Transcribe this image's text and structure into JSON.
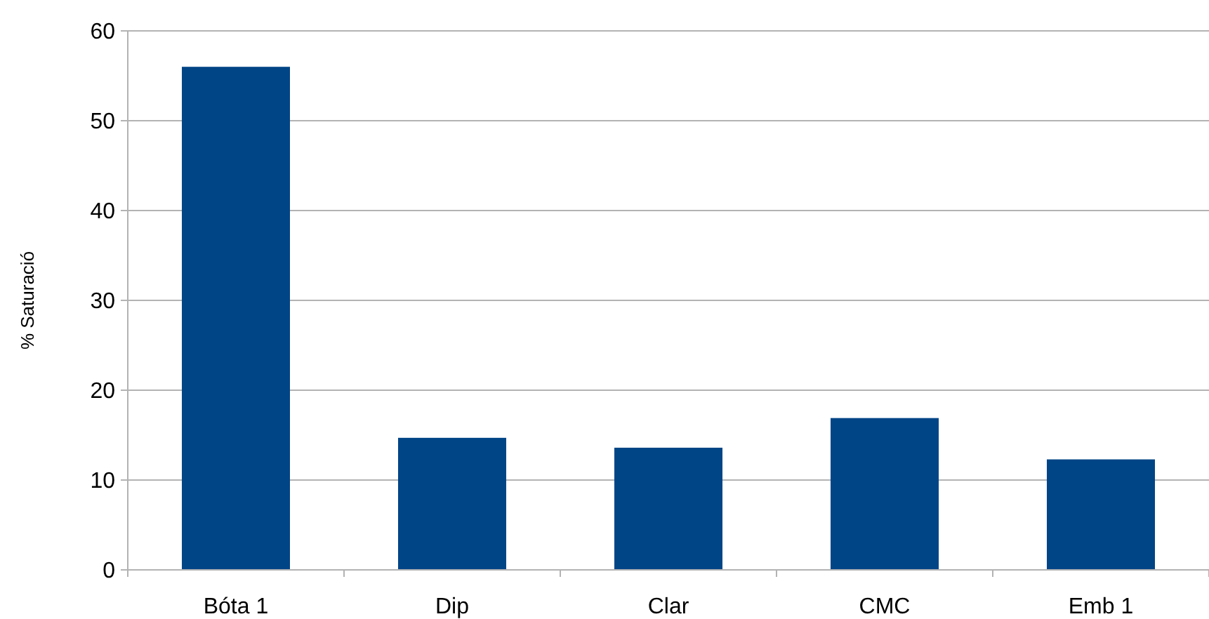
{
  "chart_data": {
    "type": "bar",
    "ylabel": "% Saturació",
    "categories": [
      "Bóta 1",
      "Dip",
      "Clar",
      "CMC",
      "Emb 1"
    ],
    "values": [
      56,
      14.7,
      13.6,
      16.9,
      12.3
    ],
    "color": "#004586",
    "ylim": [
      0,
      60
    ],
    "yticks": [
      0,
      10,
      20,
      30,
      40,
      50,
      60
    ],
    "grid": "y"
  }
}
